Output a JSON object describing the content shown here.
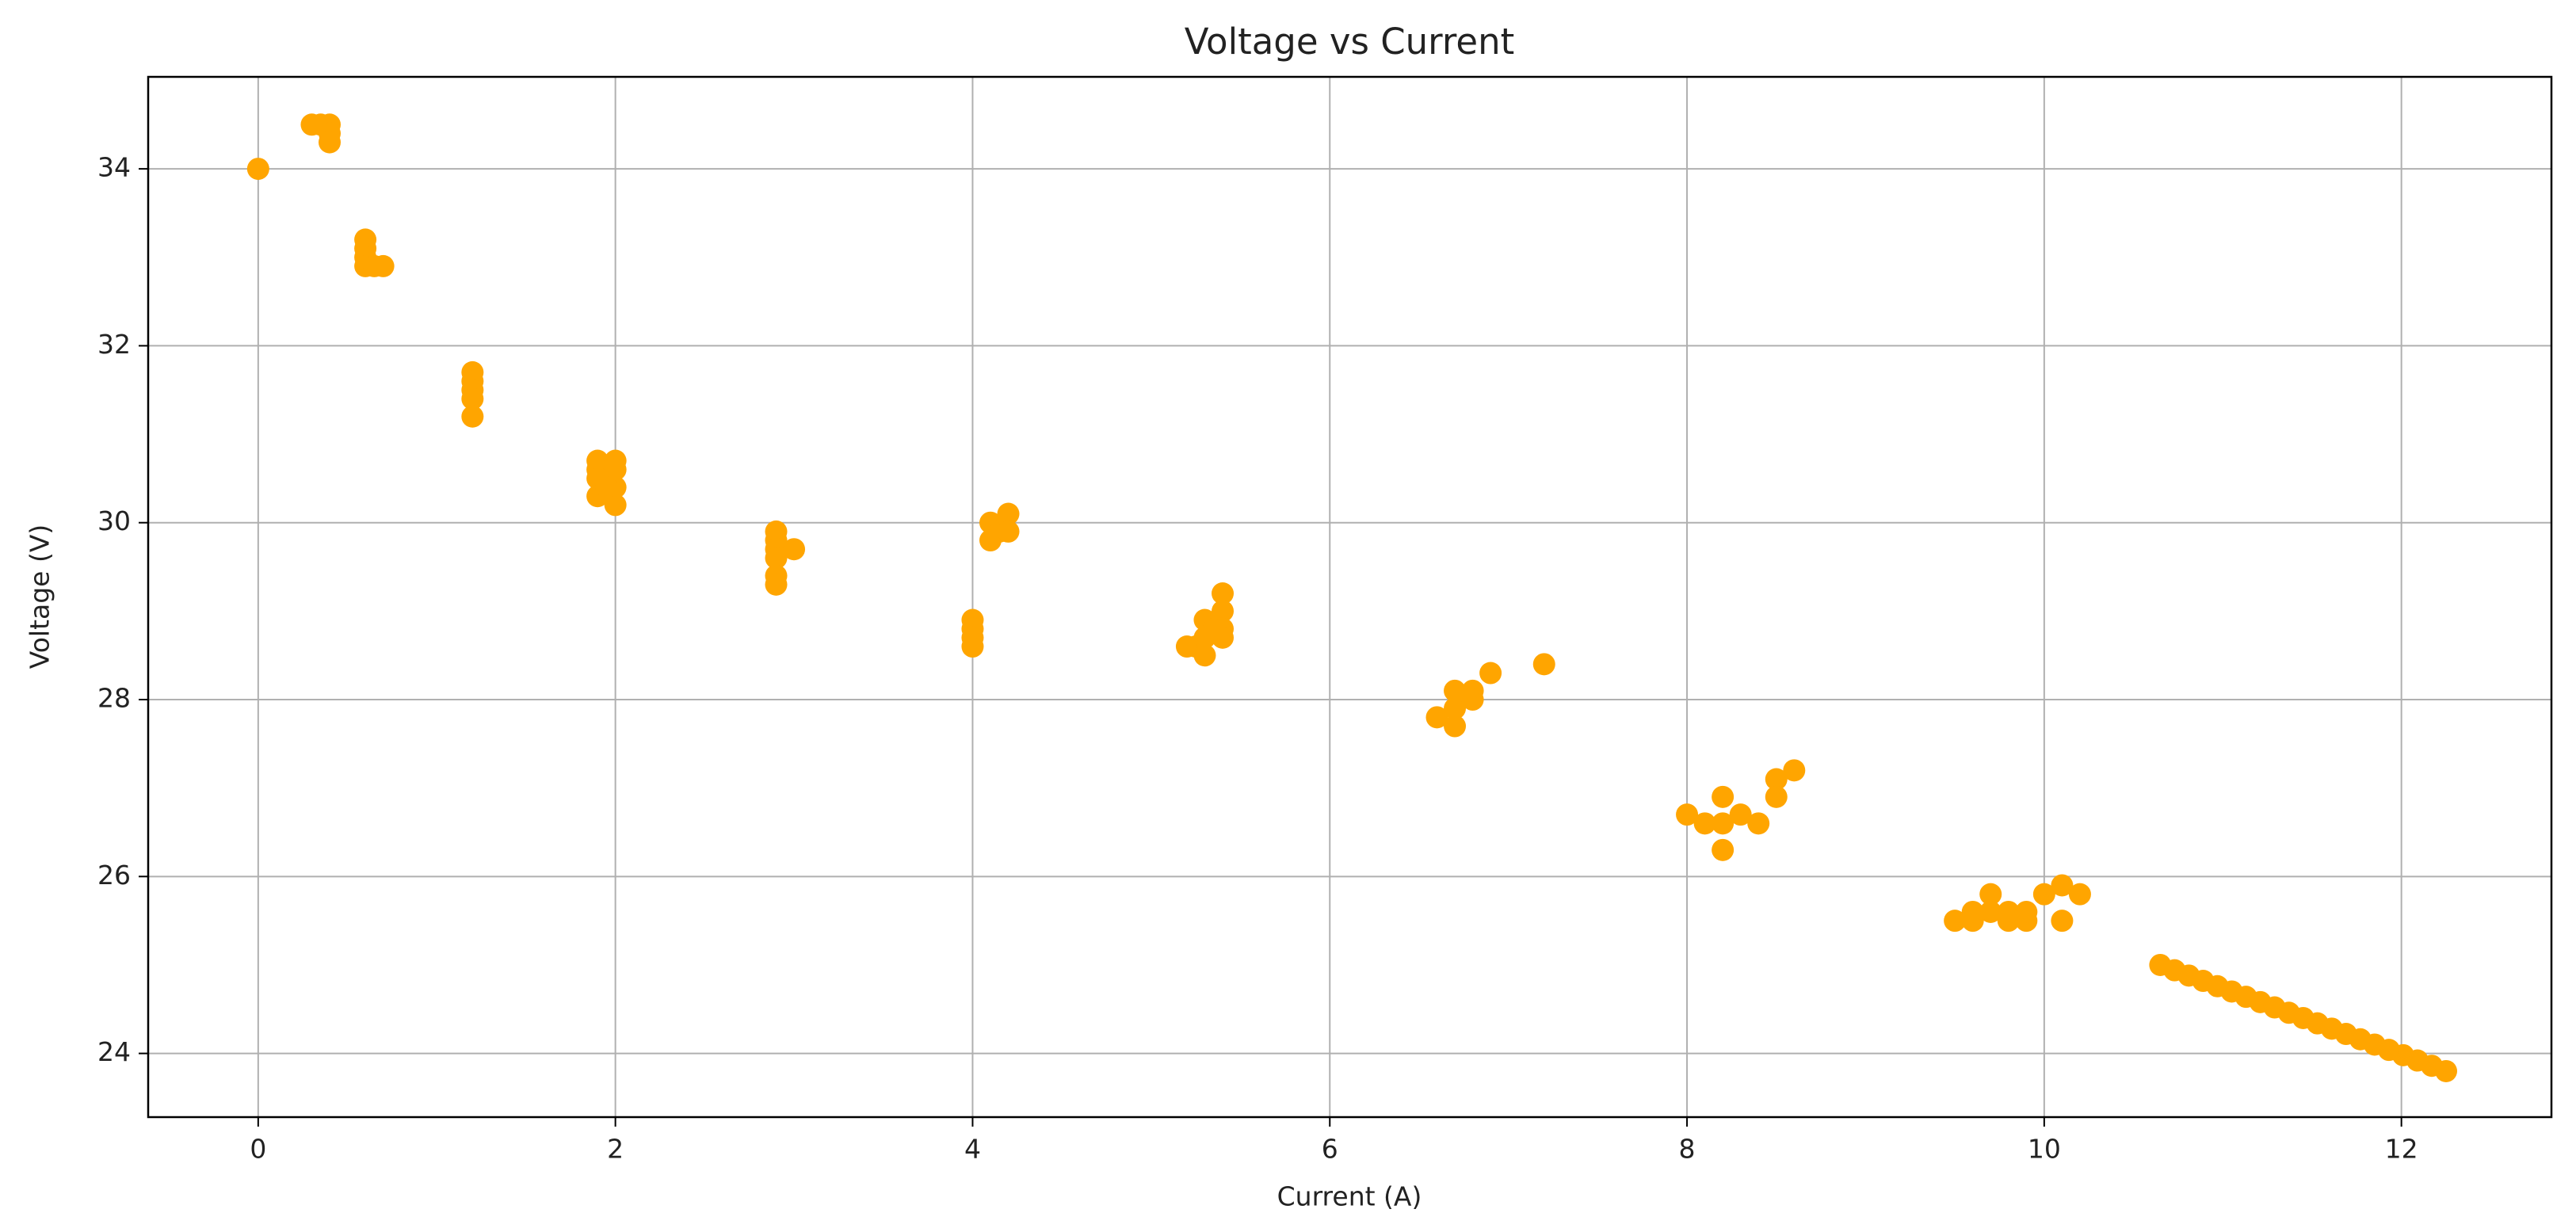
{
  "chart_data": {
    "type": "scatter",
    "title": "Voltage vs Current",
    "x_label": "Current (A)",
    "y_label": "Voltage (V)",
    "x": [
      0,
      0.3,
      0.35,
      0.4,
      0.4,
      0.4,
      0.6,
      0.6,
      0.6,
      0.6,
      0.65,
      0.7,
      1.2,
      1.2,
      1.2,
      1.2,
      1.2,
      1.9,
      1.9,
      1.9,
      1.9,
      2.0,
      2.0,
      2.0,
      2.0,
      1.95,
      2.9,
      2.9,
      2.9,
      2.9,
      2.9,
      2.9,
      3.0,
      4.0,
      4.0,
      4.0,
      4.0,
      4.1,
      4.1,
      4.15,
      4.2,
      4.2,
      5.2,
      5.25,
      5.3,
      5.3,
      5.3,
      5.35,
      5.4,
      5.4,
      5.4,
      5.4,
      6.6,
      6.7,
      6.7,
      6.7,
      6.8,
      6.8,
      6.9,
      7.2,
      8.0,
      8.1,
      8.2,
      8.2,
      8.2,
      8.3,
      8.4,
      8.5,
      8.5,
      8.6,
      9.5,
      9.6,
      9.6,
      9.7,
      9.7,
      9.8,
      9.8,
      9.9,
      9.9,
      10.0,
      10.1,
      10.1,
      10.2,
      10.65,
      10.73,
      10.81,
      10.89,
      10.97,
      11.05,
      11.13,
      11.21,
      11.29,
      11.37,
      11.45,
      11.53,
      11.61,
      11.69,
      11.77,
      11.85,
      11.93,
      12.01,
      12.09,
      12.17,
      12.25
    ],
    "values": [
      34,
      34.5,
      34.5,
      34.5,
      34.4,
      34.3,
      33.2,
      33.1,
      33.0,
      32.9,
      32.9,
      32.9,
      31.7,
      31.6,
      31.5,
      31.4,
      31.2,
      30.7,
      30.6,
      30.5,
      30.3,
      30.7,
      30.6,
      30.4,
      30.2,
      30.4,
      29.9,
      29.8,
      29.7,
      29.6,
      29.4,
      29.3,
      29.7,
      28.9,
      28.8,
      28.7,
      28.6,
      30.0,
      29.8,
      29.9,
      30.1,
      29.9,
      28.6,
      28.6,
      28.9,
      28.7,
      28.5,
      28.8,
      29.2,
      29.0,
      28.8,
      28.7,
      27.8,
      28.1,
      27.9,
      27.7,
      28.1,
      28.0,
      28.3,
      28.4,
      26.7,
      26.6,
      26.9,
      26.6,
      26.3,
      26.7,
      26.6,
      27.1,
      26.9,
      27.2,
      25.5,
      25.5,
      25.6,
      25.8,
      25.6,
      25.5,
      25.6,
      25.5,
      25.6,
      25.8,
      25.9,
      25.5,
      25.8,
      25.0,
      24.94,
      24.88,
      24.82,
      24.76,
      24.7,
      24.64,
      24.58,
      24.52,
      24.46,
      24.4,
      24.34,
      24.28,
      24.22,
      24.16,
      24.1,
      24.04,
      23.98,
      23.92,
      23.86,
      23.8
    ],
    "color": "#ffa500",
    "xlim": [
      -0.616,
      12.84
    ],
    "ylim": [
      23.28,
      35.04
    ],
    "xticks": [
      0,
      2,
      4,
      6,
      8,
      10,
      12
    ],
    "yticks": [
      24,
      26,
      28,
      30,
      32,
      34
    ],
    "grid": true
  }
}
